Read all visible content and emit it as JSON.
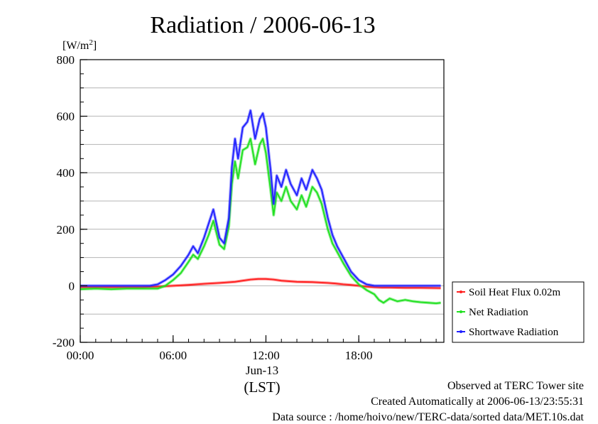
{
  "chart_data": {
    "type": "line",
    "title": "Radiation / 2006-06-13",
    "ylabel_unit_prefix": "[W/m",
    "ylabel_unit_sup": "2",
    "ylabel_unit_suffix": "]",
    "ylim": [
      -200,
      800
    ],
    "yticks": [
      -200,
      0,
      200,
      400,
      600,
      800
    ],
    "ytick_labels": [
      "-200",
      "0",
      "200",
      "400",
      "600",
      "800"
    ],
    "xlim": [
      0,
      23.5
    ],
    "xticks": [
      0,
      6,
      12,
      18
    ],
    "xtick_labels": [
      "00:00",
      "06:00",
      "12:00",
      "18:00"
    ],
    "xlabel_date": "Jun-13",
    "xlabel_tz": "(LST)",
    "grid": true,
    "legend_position": "right-bottom-outside",
    "series": [
      {
        "name": "Soil Heat Flux 0.02m",
        "color": "#ff2020",
        "x": [
          0,
          3,
          4,
          5,
          6,
          7,
          8,
          9,
          10,
          10.5,
          11,
          11.5,
          12,
          12.5,
          13,
          14,
          15,
          16,
          16.5,
          17,
          17.5,
          18,
          18.5,
          19,
          19.5,
          20,
          21,
          22,
          23.3
        ],
        "y": [
          -5,
          -5,
          -5,
          -3,
          0,
          3,
          7,
          10,
          14,
          18,
          22,
          24,
          24,
          22,
          18,
          14,
          13,
          10,
          8,
          5,
          3,
          0,
          -3,
          -5,
          -6,
          -6,
          -7,
          -7,
          -8
        ]
      },
      {
        "name": "Net Radiation",
        "color": "#20e020",
        "x": [
          0,
          1,
          2,
          3,
          4,
          4.5,
          5,
          5.5,
          6,
          6.5,
          7,
          7.3,
          7.6,
          8,
          8.3,
          8.6,
          9,
          9.3,
          9.6,
          9.8,
          10,
          10.2,
          10.5,
          10.8,
          11,
          11.3,
          11.6,
          11.8,
          12,
          12.3,
          12.5,
          12.7,
          13,
          13.3,
          13.6,
          14,
          14.3,
          14.6,
          15,
          15.3,
          15.6,
          16,
          16.3,
          16.6,
          17,
          17.5,
          18,
          18.5,
          19,
          19.3,
          19.6,
          20,
          20.5,
          21,
          21.5,
          22,
          22.5,
          23,
          23.3
        ],
        "y": [
          -12,
          -10,
          -12,
          -10,
          -10,
          -10,
          -10,
          0,
          20,
          45,
          85,
          110,
          95,
          140,
          180,
          230,
          145,
          130,
          210,
          360,
          440,
          380,
          480,
          490,
          520,
          430,
          500,
          520,
          470,
          340,
          250,
          330,
          300,
          350,
          300,
          270,
          320,
          280,
          350,
          330,
          290,
          200,
          150,
          120,
          80,
          35,
          5,
          -15,
          -30,
          -50,
          -60,
          -45,
          -55,
          -50,
          -55,
          -58,
          -60,
          -62,
          -60
        ]
      },
      {
        "name": "Shortwave Radiation",
        "color": "#2020ff",
        "x": [
          0,
          1,
          2,
          3,
          4,
          4.5,
          5,
          5.5,
          6,
          6.5,
          7,
          7.3,
          7.6,
          8,
          8.3,
          8.6,
          9,
          9.3,
          9.6,
          9.8,
          10,
          10.2,
          10.5,
          10.8,
          11,
          11.3,
          11.6,
          11.8,
          12,
          12.3,
          12.5,
          12.7,
          13,
          13.3,
          13.6,
          14,
          14.3,
          14.6,
          15,
          15.3,
          15.6,
          16,
          16.3,
          16.6,
          17,
          17.5,
          18,
          18.5,
          19,
          19.5,
          20,
          21,
          22,
          23.3
        ],
        "y": [
          0,
          0,
          0,
          0,
          0,
          0,
          5,
          20,
          40,
          70,
          110,
          140,
          115,
          170,
          220,
          270,
          170,
          150,
          240,
          420,
          520,
          450,
          560,
          580,
          620,
          520,
          590,
          610,
          560,
          410,
          290,
          390,
          350,
          410,
          360,
          320,
          380,
          340,
          410,
          380,
          340,
          240,
          180,
          140,
          100,
          50,
          20,
          5,
          0,
          0,
          0,
          0,
          0,
          0
        ]
      }
    ]
  },
  "footer": {
    "line1": "Observed at TERC Tower site",
    "line2": "Created Automatically at 2006-06-13/23:55:31",
    "line3": "Data source : /home/hoivo/new/TERC-data/sorted  data/MET.10s.dat"
  }
}
